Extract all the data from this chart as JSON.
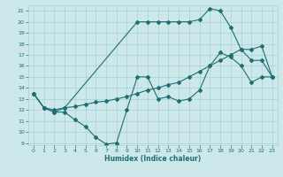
{
  "title": "",
  "xlabel": "Humidex (Indice chaleur)",
  "xlim": [
    -0.5,
    23.5
  ],
  "ylim": [
    8.8,
    21.5
  ],
  "yticks": [
    9,
    10,
    11,
    12,
    13,
    14,
    15,
    16,
    17,
    18,
    19,
    20,
    21
  ],
  "xticks": [
    0,
    1,
    2,
    3,
    4,
    5,
    6,
    7,
    8,
    9,
    10,
    11,
    12,
    13,
    14,
    15,
    16,
    17,
    18,
    19,
    20,
    21,
    22,
    23
  ],
  "bg_color": "#cce8eb",
  "grid_color": "#9ecdd1",
  "line_color": "#1e6e72",
  "line1_x": [
    0,
    1,
    2,
    3,
    4,
    5,
    6,
    7,
    8,
    9,
    10,
    11,
    12,
    13,
    14,
    15,
    16,
    17,
    18,
    19,
    20,
    21,
    22,
    23
  ],
  "line1_y": [
    13.5,
    12.2,
    11.8,
    11.8,
    11.1,
    10.5,
    9.5,
    8.9,
    9.0,
    12.0,
    15.0,
    15.0,
    13.0,
    13.2,
    12.8,
    13.0,
    13.8,
    16.0,
    17.2,
    16.8,
    16.0,
    14.5,
    15.0,
    15.0
  ],
  "line2_x": [
    0,
    1,
    2,
    3,
    10,
    11,
    12,
    13,
    14,
    15,
    16,
    17,
    18,
    19,
    20,
    21,
    22,
    23
  ],
  "line2_y": [
    13.5,
    12.2,
    11.8,
    12.2,
    20.0,
    20.0,
    20.0,
    20.0,
    20.0,
    20.0,
    20.2,
    21.2,
    21.0,
    19.5,
    17.5,
    16.5,
    16.5,
    15.0
  ],
  "line3_x": [
    0,
    1,
    2,
    3,
    4,
    5,
    6,
    7,
    8,
    9,
    10,
    11,
    12,
    13,
    14,
    15,
    16,
    17,
    18,
    19,
    20,
    21,
    22,
    23
  ],
  "line3_y": [
    13.5,
    12.2,
    12.0,
    12.2,
    12.3,
    12.5,
    12.7,
    12.8,
    13.0,
    13.2,
    13.5,
    13.8,
    14.0,
    14.3,
    14.5,
    15.0,
    15.5,
    16.0,
    16.5,
    17.0,
    17.5,
    17.5,
    17.8,
    15.0
  ]
}
